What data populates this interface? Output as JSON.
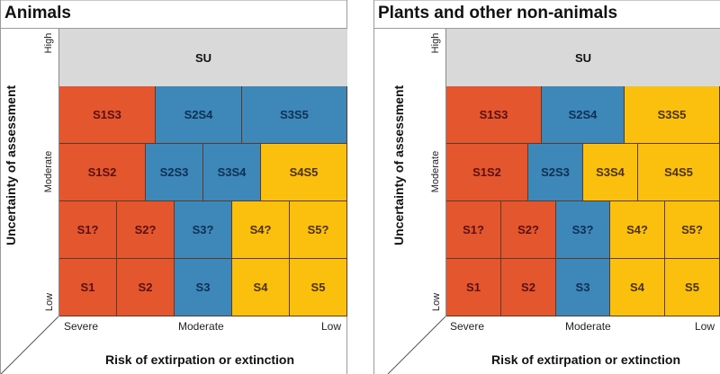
{
  "colors": {
    "severe": "#e3562e",
    "moderate": "#3d88b8",
    "low": "#fbbf0e",
    "unrankable": "#d9d9d9"
  },
  "axes": {
    "y_title": "Uncertainty of assessment",
    "y_ticks": {
      "high": "High",
      "moderate": "Moderate",
      "low": "Low"
    },
    "x_title": "Risk of extirpation or extinction",
    "x_ticks": {
      "severe": "Severe",
      "moderate": "Moderate",
      "low": "Low"
    }
  },
  "panels": [
    {
      "title": "Animals",
      "rows": [
        [
          {
            "label": "SU",
            "span": 5,
            "color": "unrankable"
          }
        ],
        [
          {
            "label": "S1S3",
            "span": 1.6667,
            "color": "severe"
          },
          {
            "label": "S2S4",
            "span": 1.5,
            "color": "moderate"
          },
          {
            "label": "S3S5",
            "span": 1.8333,
            "color": "moderate"
          }
        ],
        [
          {
            "label": "S1S2",
            "span": 1.5,
            "color": "severe"
          },
          {
            "label": "S2S3",
            "span": 1,
            "color": "moderate"
          },
          {
            "label": "S3S4",
            "span": 1,
            "color": "moderate"
          },
          {
            "label": "S4S5",
            "span": 1.5,
            "color": "low"
          }
        ],
        [
          {
            "label": "S1?",
            "span": 1,
            "color": "severe"
          },
          {
            "label": "S2?",
            "span": 1,
            "color": "severe"
          },
          {
            "label": "S3?",
            "span": 1,
            "color": "moderate"
          },
          {
            "label": "S4?",
            "span": 1,
            "color": "low"
          },
          {
            "label": "S5?",
            "span": 1,
            "color": "low"
          }
        ],
        [
          {
            "label": "S1",
            "span": 1,
            "color": "severe"
          },
          {
            "label": "S2",
            "span": 1,
            "color": "severe"
          },
          {
            "label": "S3",
            "span": 1,
            "color": "moderate"
          },
          {
            "label": "S4",
            "span": 1,
            "color": "low"
          },
          {
            "label": "S5",
            "span": 1,
            "color": "low"
          }
        ]
      ]
    },
    {
      "title": "Plants and other non-animals",
      "rows": [
        [
          {
            "label": "SU",
            "span": 5,
            "color": "unrankable"
          }
        ],
        [
          {
            "label": "S1S3",
            "span": 1.75,
            "color": "severe"
          },
          {
            "label": "S2S4",
            "span": 1.5,
            "color": "moderate"
          },
          {
            "label": "S3S5",
            "span": 1.75,
            "color": "low"
          }
        ],
        [
          {
            "label": "S1S2",
            "span": 1.5,
            "color": "severe"
          },
          {
            "label": "S2S3",
            "span": 1,
            "color": "moderate"
          },
          {
            "label": "S3S4",
            "span": 1,
            "color": "low"
          },
          {
            "label": "S4S5",
            "span": 1.5,
            "color": "low"
          }
        ],
        [
          {
            "label": "S1?",
            "span": 1,
            "color": "severe"
          },
          {
            "label": "S2?",
            "span": 1,
            "color": "severe"
          },
          {
            "label": "S3?",
            "span": 1,
            "color": "moderate"
          },
          {
            "label": "S4?",
            "span": 1,
            "color": "low"
          },
          {
            "label": "S5?",
            "span": 1,
            "color": "low"
          }
        ],
        [
          {
            "label": "S1",
            "span": 1,
            "color": "severe"
          },
          {
            "label": "S2",
            "span": 1,
            "color": "severe"
          },
          {
            "label": "S3",
            "span": 1,
            "color": "moderate"
          },
          {
            "label": "S4",
            "span": 1,
            "color": "low"
          },
          {
            "label": "S5",
            "span": 1,
            "color": "low"
          }
        ]
      ]
    }
  ]
}
